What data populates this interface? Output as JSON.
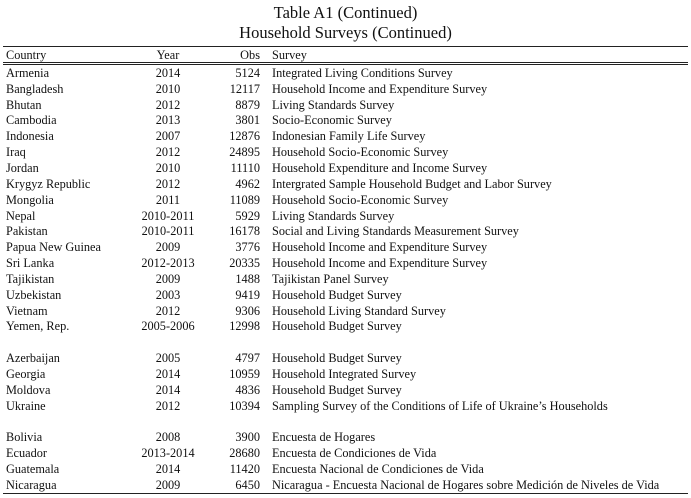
{
  "title": "Table A1 (Continued)",
  "subtitle": "Household Surveys (Continued)",
  "headers": {
    "country": "Country",
    "year": "Year",
    "obs": "Obs",
    "survey": "Survey"
  },
  "groups": [
    [
      {
        "country": "Armenia",
        "year": "2014",
        "obs": "5124",
        "survey": "Integrated Living Conditions Survey"
      },
      {
        "country": "Bangladesh",
        "year": "2010",
        "obs": "12117",
        "survey": "Household Income and Expenditure Survey"
      },
      {
        "country": "Bhutan",
        "year": "2012",
        "obs": "8879",
        "survey": "Living Standards Survey"
      },
      {
        "country": "Cambodia",
        "year": "2013",
        "obs": "3801",
        "survey": "Socio-Economic Survey"
      },
      {
        "country": "Indonesia",
        "year": "2007",
        "obs": "12876",
        "survey": "Indonesian Family Life Survey"
      },
      {
        "country": "Iraq",
        "year": "2012",
        "obs": "24895",
        "survey": "Household Socio-Economic Survey"
      },
      {
        "country": "Jordan",
        "year": "2010",
        "obs": "11110",
        "survey": "Household Expenditure and Income Survey"
      },
      {
        "country": "Krygyz Republic",
        "year": "2012",
        "obs": "4962",
        "survey": "Intergrated Sample Household Budget and Labor Survey"
      },
      {
        "country": "Mongolia",
        "year": "2011",
        "obs": "11089",
        "survey": "Household Socio-Economic Survey"
      },
      {
        "country": "Nepal",
        "year": "2010-2011",
        "obs": "5929",
        "survey": "Living Standards Survey"
      },
      {
        "country": "Pakistan",
        "year": "2010-2011",
        "obs": "16178",
        "survey": "Social and Living Standards Measurement Survey"
      },
      {
        "country": "Papua New Guinea",
        "year": "2009",
        "obs": "3776",
        "survey": "Household Income and Expenditure Survey"
      },
      {
        "country": "Sri Lanka",
        "year": "2012-2013",
        "obs": "20335",
        "survey": "Household Income and Expenditure Survey"
      },
      {
        "country": "Tajikistan",
        "year": "2009",
        "obs": "1488",
        "survey": "Tajikistan Panel Survey"
      },
      {
        "country": "Uzbekistan",
        "year": "2003",
        "obs": "9419",
        "survey": "Household Budget Survey"
      },
      {
        "country": "Vietnam",
        "year": "2012",
        "obs": "9306",
        "survey": "Household Living Standard Survey"
      },
      {
        "country": "Yemen, Rep.",
        "year": "2005-2006",
        "obs": "12998",
        "survey": "Household Budget Survey"
      }
    ],
    [
      {
        "country": "Azerbaijan",
        "year": "2005",
        "obs": "4797",
        "survey": "Household Budget Survey"
      },
      {
        "country": "Georgia",
        "year": "2014",
        "obs": "10959",
        "survey": "Household Integrated Survey"
      },
      {
        "country": "Moldova",
        "year": "2014",
        "obs": "4836",
        "survey": "Household Budget Survey"
      },
      {
        "country": "Ukraine",
        "year": "2012",
        "obs": "10394",
        "survey": "Sampling Survey of the Conditions of Life of Ukraine’s Households"
      }
    ],
    [
      {
        "country": "Bolivia",
        "year": "2008",
        "obs": "3900",
        "survey": "Encuesta de Hogares"
      },
      {
        "country": "Ecuador",
        "year": "2013-2014",
        "obs": "28680",
        "survey": "Encuesta de Condiciones de Vida"
      },
      {
        "country": "Guatemala",
        "year": "2014",
        "obs": "11420",
        "survey": "Encuesta Nacional de Condiciones de Vida"
      },
      {
        "country": "Nicaragua",
        "year": "2009",
        "obs": "6450",
        "survey": "Nicaragua - Encuesta Nacional de Hogares sobre Medición de Niveles de Vida"
      }
    ]
  ]
}
